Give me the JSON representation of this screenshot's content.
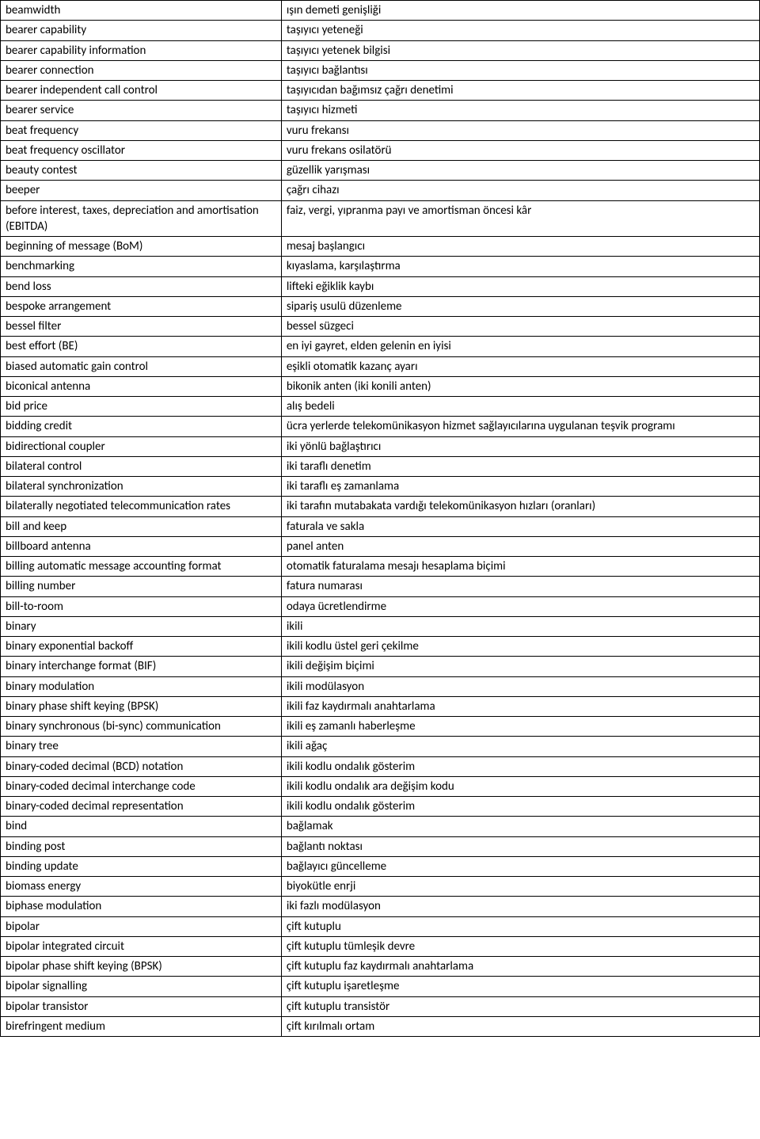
{
  "rows": [
    {
      "en": "beamwidth",
      "tr": "ışın demeti genişliği"
    },
    {
      "en": "bearer capability",
      "tr": "taşıyıcı yeteneği"
    },
    {
      "en": "bearer capability information",
      "tr": "taşıyıcı yetenek bilgisi"
    },
    {
      "en": "bearer connection",
      "tr": "taşıyıcı bağlantısı"
    },
    {
      "en": "bearer independent call control",
      "tr": "taşıyıcıdan bağımsız çağrı denetimi"
    },
    {
      "en": "bearer service",
      "tr": "taşıyıcı hizmeti"
    },
    {
      "en": "beat frequency",
      "tr": "vuru frekansı"
    },
    {
      "en": "beat frequency oscillator",
      "tr": "vuru frekans osilatörü"
    },
    {
      "en": "beauty contest",
      "tr": "güzellik yarışması"
    },
    {
      "en": "beeper",
      "tr": "çağrı cihazı"
    },
    {
      "en": "before interest, taxes, depreciation and amortisation (EBITDA)",
      "tr": "faiz, vergi, yıpranma payı ve amortisman öncesi kâr"
    },
    {
      "en": "beginning of message (BoM)",
      "tr": "mesaj başlangıcı"
    },
    {
      "en": "benchmarking",
      "tr": "kıyaslama, karşılaştırma"
    },
    {
      "en": "bend loss",
      "tr": "lifteki eğiklik kaybı"
    },
    {
      "en": "bespoke arrangement",
      "tr": "sipariş usulü düzenleme"
    },
    {
      "en": "bessel filter",
      "tr": "bessel süzgeci"
    },
    {
      "en": "best effort (BE)",
      "tr": "en iyi gayret, elden gelenin en iyisi"
    },
    {
      "en": "biased automatic gain control",
      "tr": "eşikli otomatik kazanç ayarı"
    },
    {
      "en": "biconical antenna",
      "tr": "bikonik anten (iki konili anten)"
    },
    {
      "en": "bid price",
      "tr": "alış bedeli"
    },
    {
      "en": "bidding credit",
      "tr": "ücra yerlerde telekomünikasyon hizmet sağlayıcılarına uygulanan teşvik programı"
    },
    {
      "en": "bidirectional coupler",
      "tr": "iki yönlü bağlaştırıcı"
    },
    {
      "en": "bilateral control",
      "tr": "iki taraflı denetim"
    },
    {
      "en": "bilateral synchronization",
      "tr": "iki taraflı eş zamanlama"
    },
    {
      "en": "bilaterally negotiated telecommunication rates",
      "tr": "iki tarafın mutabakata vardığı telekomünikasyon hızları (oranları)"
    },
    {
      "en": "bill and keep",
      "tr": "faturala ve sakla"
    },
    {
      "en": "billboard antenna",
      "tr": "panel anten"
    },
    {
      "en": "billing automatic message accounting format",
      "tr": "otomatik faturalama mesajı hesaplama biçimi"
    },
    {
      "en": "billing number",
      "tr": "fatura numarası"
    },
    {
      "en": "bill-to-room",
      "tr": "odaya ücretlendirme"
    },
    {
      "en": "binary",
      "tr": "ikili"
    },
    {
      "en": "binary exponential backoff",
      "tr": "ikili kodlu üstel geri çekilme"
    },
    {
      "en": "binary interchange format (BIF)",
      "tr": "ikili değişim biçimi"
    },
    {
      "en": "binary modulation",
      "tr": "ikili modülasyon"
    },
    {
      "en": "binary phase shift keying (BPSK)",
      "tr": "ikili faz kaydırmalı anahtarlama"
    },
    {
      "en": "binary synchronous (bi-sync) communication",
      "tr": "ikili eş zamanlı haberleşme"
    },
    {
      "en": "binary tree",
      "tr": "ikili ağaç"
    },
    {
      "en": "binary-coded decimal (BCD) notation",
      "tr": "ikili kodlu ondalık gösterim"
    },
    {
      "en": "binary-coded decimal interchange code",
      "tr": "ikili kodlu ondalık ara değişim kodu"
    },
    {
      "en": "binary-coded decimal representation",
      "tr": "ikili kodlu ondalık gösterim"
    },
    {
      "en": "bind",
      "tr": "bağlamak"
    },
    {
      "en": "binding post",
      "tr": "bağlantı noktası"
    },
    {
      "en": "binding update",
      "tr": "bağlayıcı güncelleme"
    },
    {
      "en": "biomass energy",
      "tr": "biyokütle enrji"
    },
    {
      "en": "biphase modulation",
      "tr": "iki fazlı modülasyon"
    },
    {
      "en": "bipolar",
      "tr": "çift kutuplu"
    },
    {
      "en": "bipolar integrated circuit",
      "tr": "çift kutuplu tümleşik devre"
    },
    {
      "en": "bipolar phase shift keying (BPSK)",
      "tr": "çift kutuplu faz kaydırmalı anahtarlama"
    },
    {
      "en": "bipolar signalling",
      "tr": "çift kutuplu işaretleşme"
    },
    {
      "en": "bipolar transistor",
      "tr": "çift kutuplu transistör"
    },
    {
      "en": "birefringent medium",
      "tr": "çift kırılmalı ortam"
    }
  ]
}
